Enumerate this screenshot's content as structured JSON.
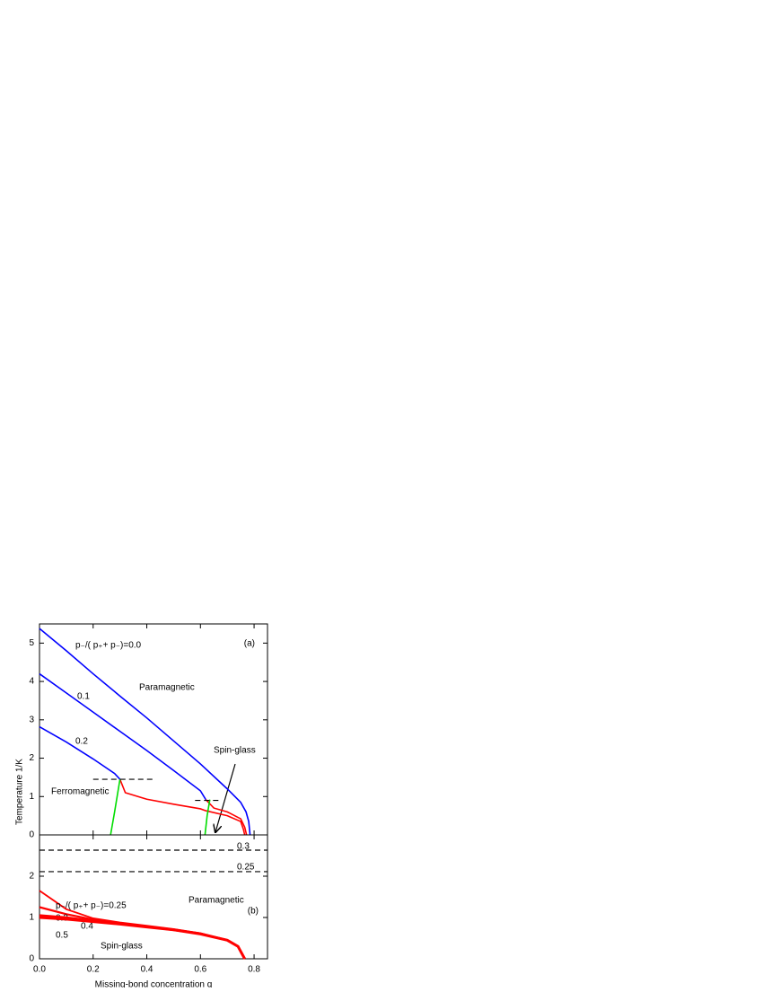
{
  "chart_data": [
    {
      "type": "line",
      "ylabel": "Temperature 1/K",
      "xlim": [
        0,
        0.85
      ],
      "ylim": [
        0,
        5.5
      ],
      "yticks": [
        0,
        1,
        2,
        3,
        4,
        5
      ],
      "series": [
        {
          "name": "p₋/( p₊+ p₋)=0.0",
          "color": "#0000ff",
          "x": [
            0,
            0.1,
            0.2,
            0.3,
            0.4,
            0.5,
            0.6,
            0.7,
            0.75,
            0.77,
            0.78,
            0.785
          ],
          "values": [
            5.38,
            4.8,
            4.2,
            3.62,
            3.05,
            2.45,
            1.85,
            1.2,
            0.85,
            0.6,
            0.35,
            0
          ]
        },
        {
          "name": "0.1",
          "color": "#0000ff",
          "x": [
            0,
            0.1,
            0.2,
            0.3,
            0.4,
            0.5,
            0.6,
            0.62
          ],
          "values": [
            4.2,
            3.7,
            3.2,
            2.7,
            2.2,
            1.68,
            1.15,
            0.92
          ]
        },
        {
          "name": "0.2",
          "color": "#0000ff",
          "x": [
            0,
            0.1,
            0.2,
            0.28,
            0.3
          ],
          "values": [
            2.82,
            2.42,
            1.98,
            1.6,
            1.45
          ]
        },
        {
          "color": "#ff0000",
          "x": [
            0.3,
            0.32,
            0.4,
            0.5,
            0.6,
            0.62,
            0.7,
            0.75,
            0.76,
            0.765
          ],
          "values": [
            1.45,
            1.1,
            0.93,
            0.8,
            0.68,
            0.63,
            0.5,
            0.35,
            0.15,
            0
          ]
        },
        {
          "color": "#ff0000",
          "x": [
            0.62,
            0.65,
            0.7,
            0.75,
            0.765,
            0.772
          ],
          "values": [
            0.92,
            0.7,
            0.6,
            0.42,
            0.2,
            0
          ]
        },
        {
          "color": "#00dd00",
          "x": [
            0.265,
            0.28,
            0.3
          ],
          "values": [
            0,
            0.6,
            1.45
          ]
        },
        {
          "color": "#00dd00",
          "x": [
            0.617,
            0.625,
            0.635
          ],
          "values": [
            0,
            0.5,
            0.92
          ]
        },
        {
          "color": "#000000",
          "dash": true,
          "x": [
            0.2,
            0.43
          ],
          "values": [
            1.45,
            1.45
          ]
        },
        {
          "color": "#000000",
          "dash": true,
          "x": [
            0.58,
            0.67
          ],
          "values": [
            0.9,
            0.9
          ]
        }
      ],
      "annotations": [
        "Paramagnetic",
        "Spin-glass",
        "Ferromagnetic",
        "(a)"
      ]
    },
    {
      "type": "line",
      "xlabel": "Missing-bond concentration q",
      "xlim": [
        0,
        0.85
      ],
      "ylim": [
        0,
        3
      ],
      "xticks": [
        {
          "value": 0,
          "label": "0.0"
        },
        0.2,
        0.4,
        0.6,
        0.8
      ],
      "yticks": [
        0,
        1,
        2
      ],
      "series": [
        {
          "name": "0.3",
          "color": "#000000",
          "dash": true,
          "x": [
            0,
            0.85
          ],
          "values": [
            2.63,
            2.63
          ]
        },
        {
          "name": "0.25",
          "color": "#000000",
          "dash": true,
          "x": [
            0,
            0.85
          ],
          "values": [
            2.11,
            2.11
          ]
        },
        {
          "name": "p₋/( p₊+ p₋)=0.25",
          "color": "#ff0000",
          "x": [
            0,
            0.1,
            0.2,
            0.3,
            0.4,
            0.5,
            0.6,
            0.7,
            0.74,
            0.755,
            0.765
          ],
          "values": [
            1.65,
            1.2,
            0.98,
            0.88,
            0.8,
            0.72,
            0.62,
            0.45,
            0.3,
            0.12,
            0
          ]
        },
        {
          "name": "0.3",
          "color": "#ff0000",
          "x": [
            0,
            0.1,
            0.2,
            0.3,
            0.4,
            0.5,
            0.6,
            0.7,
            0.74,
            0.755,
            0.765
          ],
          "values": [
            1.25,
            1.08,
            0.95,
            0.86,
            0.79,
            0.71,
            0.61,
            0.45,
            0.3,
            0.12,
            0
          ]
        },
        {
          "name": "0.4",
          "color": "#ff0000",
          "x": [
            0,
            0.1,
            0.2,
            0.3,
            0.4,
            0.5,
            0.6,
            0.7,
            0.74,
            0.755,
            0.765
          ],
          "values": [
            1.05,
            1.0,
            0.92,
            0.85,
            0.78,
            0.7,
            0.61,
            0.45,
            0.3,
            0.12,
            0
          ]
        },
        {
          "name": "0.5",
          "color": "#ff0000",
          "x": [
            0,
            0.1,
            0.2,
            0.3,
            0.4,
            0.5,
            0.6,
            0.7,
            0.74,
            0.755,
            0.765
          ],
          "values": [
            1.0,
            0.96,
            0.9,
            0.84,
            0.77,
            0.7,
            0.6,
            0.45,
            0.3,
            0.12,
            0
          ]
        }
      ],
      "annotations": [
        "Paramagnetic",
        "Spin-glass",
        "(b)"
      ]
    }
  ]
}
